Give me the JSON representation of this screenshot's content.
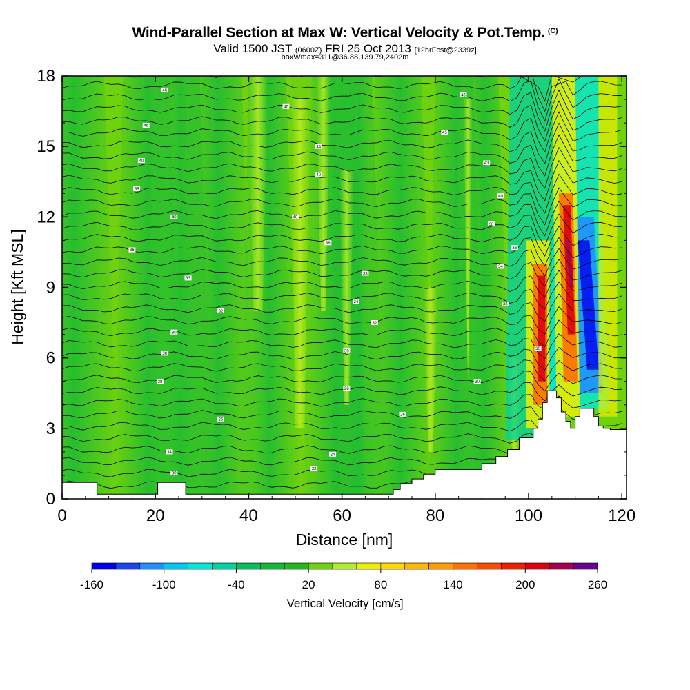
{
  "chart_data": {
    "type": "heatmap",
    "title": {
      "main": "Wind-Parallel Section at Max W: Vertical Velocity & Pot.Temp.",
      "copyright": "(C)",
      "valid_prefix": "Valid 1500 JST",
      "valid_utc": "(0600Z)",
      "valid_date": "FRI 25 Oct 2013",
      "forecast": "[12hrFcst@2339z]",
      "box_info": "boxWmax=311@36.88,139.79,2402m"
    },
    "xlabel": "Distance [nm]",
    "ylabel": "Height [Kft MSL]",
    "xlim": [
      0,
      121
    ],
    "ylim": [
      0,
      18
    ],
    "x_ticks": [
      "0",
      "20",
      "40",
      "60",
      "80",
      "100",
      "120"
    ],
    "y_ticks": [
      "0",
      "3",
      "6",
      "9",
      "12",
      "15",
      "18"
    ],
    "colorbar": {
      "label": "Vertical Velocity [cm/s]",
      "tick_labels": [
        "-160",
        "-100",
        "-40",
        "20",
        "80",
        "140",
        "200",
        "260"
      ],
      "tick_values": [
        -160,
        -100,
        -40,
        20,
        80,
        140,
        200,
        260
      ],
      "levels": [
        -160,
        -140,
        -120,
        -100,
        -80,
        -60,
        -40,
        -20,
        0,
        20,
        40,
        60,
        80,
        100,
        120,
        140,
        160,
        180,
        200,
        220,
        240,
        260
      ],
      "colors": [
        "#0000ee",
        "#1a46f0",
        "#1e90ff",
        "#00c8f0",
        "#00e8d8",
        "#00d2a0",
        "#00c060",
        "#10b838",
        "#20b820",
        "#6ed20f",
        "#b0ec2a",
        "#eeee00",
        "#ffd700",
        "#ffb800",
        "#ff9c00",
        "#ff7000",
        "#ff4800",
        "#ee2000",
        "#dd0010",
        "#a8004a",
        "#6a0090"
      ]
    },
    "terrain_kft": [
      [
        0,
        0.7
      ],
      [
        7.5,
        0.7
      ],
      [
        7.5,
        0.2
      ],
      [
        20.5,
        0.2
      ],
      [
        20.5,
        0.7
      ],
      [
        26.5,
        0.7
      ],
      [
        26.5,
        0.2
      ],
      [
        71,
        0.2
      ],
      [
        71,
        0.4
      ],
      [
        72.5,
        0.4
      ],
      [
        72.5,
        0.65
      ],
      [
        75,
        0.65
      ],
      [
        75,
        0.85
      ],
      [
        77.5,
        0.85
      ],
      [
        77.5,
        1.05
      ],
      [
        80,
        1.05
      ],
      [
        80,
        1.25
      ],
      [
        90,
        1.25
      ],
      [
        90,
        1.5
      ],
      [
        93,
        1.5
      ],
      [
        93,
        1.8
      ],
      [
        95.5,
        1.8
      ],
      [
        95.5,
        2.1
      ],
      [
        98,
        2.1
      ],
      [
        98,
        2.6
      ],
      [
        101,
        2.6
      ],
      [
        101,
        3.0
      ],
      [
        102,
        3.0
      ],
      [
        102,
        3.4
      ],
      [
        103,
        3.4
      ],
      [
        103,
        4.1
      ],
      [
        104,
        4.1
      ],
      [
        104,
        4.6
      ],
      [
        106,
        4.6
      ],
      [
        106,
        4.3
      ],
      [
        107,
        4.3
      ],
      [
        107,
        3.7
      ],
      [
        108,
        3.7
      ],
      [
        108,
        3.3
      ],
      [
        109,
        3.3
      ],
      [
        109,
        3.0
      ],
      [
        110,
        3.0
      ],
      [
        110,
        3.5
      ],
      [
        111,
        3.5
      ],
      [
        111,
        3.85
      ],
      [
        114,
        3.85
      ],
      [
        114,
        3.5
      ],
      [
        115,
        3.5
      ],
      [
        115,
        3.1
      ],
      [
        116,
        3.1
      ],
      [
        116,
        3.0
      ],
      [
        117.5,
        3.0
      ],
      [
        117.5,
        2.95
      ],
      [
        121,
        2.95
      ]
    ],
    "contour_labels": [
      {
        "text": "46",
        "x": 22,
        "y": 17.4
      },
      {
        "text": "46",
        "x": 48,
        "y": 16.7
      },
      {
        "text": "46",
        "x": 86,
        "y": 17.2
      },
      {
        "text": "46",
        "x": 18,
        "y": 15.9
      },
      {
        "text": "44",
        "x": 55,
        "y": 15.0
      },
      {
        "text": "45",
        "x": 82,
        "y": 15.6
      },
      {
        "text": "40",
        "x": 17,
        "y": 14.4
      },
      {
        "text": "43",
        "x": 91,
        "y": 14.3
      },
      {
        "text": "40",
        "x": 55,
        "y": 13.8
      },
      {
        "text": "38",
        "x": 16,
        "y": 13.2
      },
      {
        "text": "40",
        "x": 94,
        "y": 12.9
      },
      {
        "text": "40",
        "x": 24,
        "y": 12.0
      },
      {
        "text": "40",
        "x": 50,
        "y": 12.0
      },
      {
        "text": "38",
        "x": 92,
        "y": 11.7
      },
      {
        "text": "36",
        "x": 57,
        "y": 10.9
      },
      {
        "text": "36",
        "x": 97,
        "y": 10.7
      },
      {
        "text": "36",
        "x": 15,
        "y": 10.6
      },
      {
        "text": "34",
        "x": 94,
        "y": 9.9
      },
      {
        "text": "33",
        "x": 65,
        "y": 9.6
      },
      {
        "text": "33",
        "x": 27,
        "y": 9.4
      },
      {
        "text": "34",
        "x": 63,
        "y": 8.4
      },
      {
        "text": "33",
        "x": 95,
        "y": 8.3
      },
      {
        "text": "32",
        "x": 34,
        "y": 8.0
      },
      {
        "text": "32",
        "x": 67,
        "y": 7.5
      },
      {
        "text": "30",
        "x": 24,
        "y": 7.1
      },
      {
        "text": "30",
        "x": 61,
        "y": 6.3
      },
      {
        "text": "30",
        "x": 102,
        "y": 6.4
      },
      {
        "text": "30",
        "x": 22,
        "y": 6.2
      },
      {
        "text": "28",
        "x": 21,
        "y": 5.0
      },
      {
        "text": "30",
        "x": 89,
        "y": 5.0
      },
      {
        "text": "28",
        "x": 61,
        "y": 4.7
      },
      {
        "text": "26",
        "x": 73,
        "y": 3.6
      },
      {
        "text": "26",
        "x": 34,
        "y": 3.4
      },
      {
        "text": "34",
        "x": 23,
        "y": 2.0
      },
      {
        "text": "24",
        "x": 58,
        "y": 1.9
      },
      {
        "text": "22",
        "x": 54,
        "y": 1.3
      },
      {
        "text": "30",
        "x": 24,
        "y": 1.1
      }
    ]
  }
}
